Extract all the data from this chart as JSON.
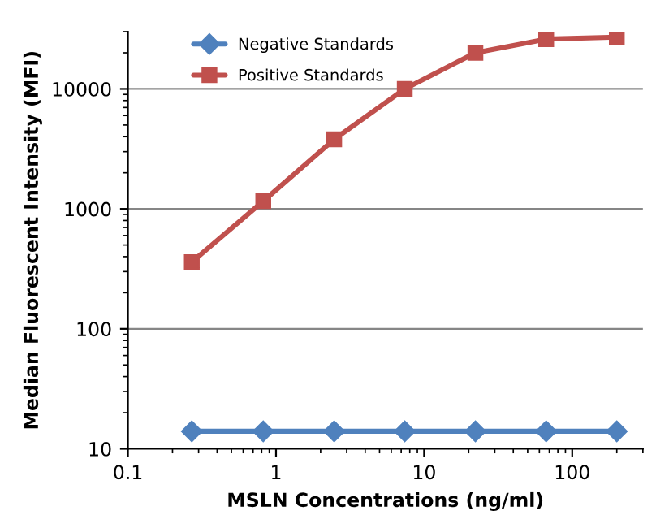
{
  "chart_data": {
    "type": "line",
    "xlabel": "MSLN Concentrations (ng/ml)",
    "ylabel": "Median Fluorescent Intensity (MFI)",
    "x": [
      0.27,
      0.82,
      2.47,
      7.4,
      22.2,
      66.7,
      200
    ],
    "series": [
      {
        "name": "Negative Standards",
        "color": "#4f81bd",
        "marker": "diamond",
        "values": [
          14,
          14,
          14,
          14,
          14,
          14,
          14
        ]
      },
      {
        "name": "Positive Standards",
        "color": "#c0504d",
        "marker": "square",
        "values": [
          360,
          1160,
          3800,
          10000,
          20000,
          26000,
          27000
        ]
      }
    ],
    "log": "xy",
    "xlim": [
      0.1,
      300
    ],
    "xticks": [
      {
        "value": 0.1,
        "label": "0.1"
      },
      1,
      10,
      100
    ],
    "ylim": [
      10,
      30000
    ],
    "yticks": [
      10,
      100,
      1000,
      10000
    ],
    "grid": "y",
    "legend": "top left",
    "line_style": "solid"
  }
}
